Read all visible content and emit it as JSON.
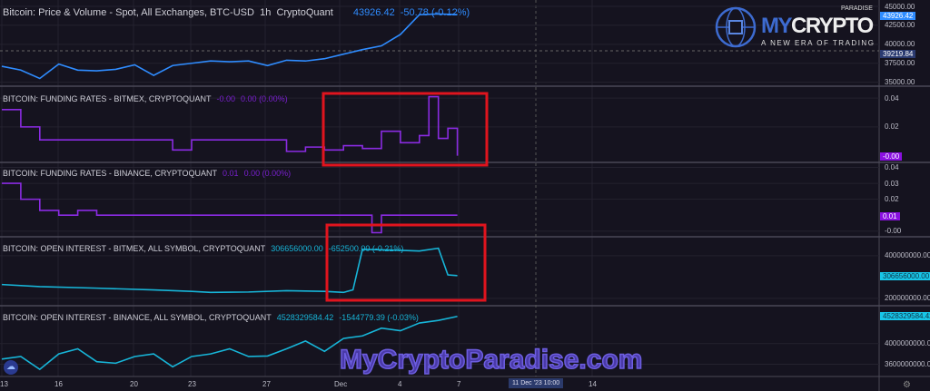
{
  "chart_data": [
    {
      "type": "line",
      "title": "Bitcoin: Price & Volume - Spot, All Exchanges, BTC-USD",
      "interval": "1h",
      "source": "CryptoQuant",
      "legend_value": "43926.42",
      "legend_change": "-50.78 (-0.12%)",
      "color": "#2f8cff",
      "ylim": [
        34600,
        45600
      ],
      "yticks": [
        "45000.00",
        "42500.00",
        "40000.00",
        "37500.00",
        "35000.00"
      ],
      "last_value_tag": "43926.42",
      "crosshair_tag": "39219.84",
      "x": [
        "2023-11-13",
        "2023-11-14",
        "2023-11-15",
        "2023-11-16",
        "2023-11-17",
        "2023-11-18",
        "2023-11-19",
        "2023-11-20",
        "2023-11-21",
        "2023-11-22",
        "2023-11-23",
        "2023-11-24",
        "2023-11-25",
        "2023-11-26",
        "2023-11-27",
        "2023-11-28",
        "2023-11-29",
        "2023-11-30",
        "2023-12-01",
        "2023-12-02",
        "2023-12-03",
        "2023-12-04",
        "2023-12-05",
        "2023-12-06",
        "2023-12-07"
      ],
      "values": [
        37100,
        36600,
        35500,
        37400,
        36600,
        36500,
        36700,
        37300,
        35900,
        37200,
        37500,
        37800,
        37700,
        37800,
        37200,
        37900,
        37800,
        38100,
        38700,
        39300,
        39800,
        41300,
        43900,
        44000,
        43926
      ]
    },
    {
      "type": "line",
      "title": "BITCOIN: FUNDING RATES - BITMEX, CRYPTOQUANT",
      "legend_value": "-0.00",
      "legend_change": "0.00 (0.00%)",
      "color": "#8a2be2",
      "ylim": [
        -0.004,
        0.047
      ],
      "yticks": [
        "0.04",
        "0.02"
      ],
      "last_value_tag": "-0.00",
      "x": [
        "2023-11-13",
        "2023-11-14",
        "2023-11-15",
        "2023-11-16",
        "2023-11-20",
        "2023-11-22",
        "2023-11-23",
        "2023-11-27",
        "2023-11-28",
        "2023-11-29",
        "2023-11-30",
        "2023-12-01",
        "2023-12-02",
        "2023-12-03",
        "2023-12-04",
        "2023-12-05",
        "2023-12-05 12:00",
        "2023-12-06",
        "2023-12-06 12:00",
        "2023-12-07"
      ],
      "values": [
        0.032,
        0.02,
        0.011,
        0.011,
        0.011,
        0.004,
        0.011,
        0.011,
        0.003,
        0.006,
        0.004,
        0.007,
        0.005,
        0.017,
        0.009,
        0.014,
        0.041,
        0.012,
        0.019,
        0.0
      ]
    },
    {
      "type": "line",
      "title": "BITCOIN: FUNDING RATES - BINANCE, CRYPTOQUANT",
      "legend_value": "0.01",
      "legend_change": "0.00 (0.00%)",
      "color": "#8a2be2",
      "ylim": [
        -0.003,
        0.042
      ],
      "yticks": [
        "0.04",
        "0.03",
        "0.02",
        "-0.00"
      ],
      "last_value_tag": "0.01",
      "x": [
        "2023-11-13",
        "2023-11-14",
        "2023-11-15",
        "2023-11-16",
        "2023-11-17",
        "2023-11-18",
        "2023-11-22",
        "2023-12-02",
        "2023-12-02 12:00",
        "2023-12-03",
        "2023-12-07"
      ],
      "values": [
        0.03,
        0.02,
        0.013,
        0.01,
        0.013,
        0.01,
        0.01,
        0.01,
        -0.001,
        0.01,
        0.01
      ]
    },
    {
      "type": "line",
      "title": "BITCOIN: OPEN INTEREST - BITMEX, ALL SYMBOL, CRYPTOQUANT",
      "legend_value": "306656000.00",
      "legend_change": "-652500.00 (-0.21%)",
      "color": "#17b5d8",
      "ylim": [
        170000000,
        480000000
      ],
      "yticks": [
        "400000000.00",
        "200000000.00"
      ],
      "last_value_tag": "306656000.00",
      "x": [
        "2023-11-13",
        "2023-11-15",
        "2023-11-18",
        "2023-11-21",
        "2023-11-23",
        "2023-11-24",
        "2023-11-26",
        "2023-11-28",
        "2023-11-30",
        "2023-12-01",
        "2023-12-01 12:00",
        "2023-12-02",
        "2023-12-04",
        "2023-12-05",
        "2023-12-06",
        "2023-12-06 12:00",
        "2023-12-07"
      ],
      "values": [
        265000000,
        255000000,
        248000000,
        240000000,
        233000000,
        228000000,
        230000000,
        236000000,
        233000000,
        228000000,
        240000000,
        430000000,
        425000000,
        422000000,
        435000000,
        310000000,
        306656000
      ]
    },
    {
      "type": "line",
      "title": "BITCOIN: OPEN INTEREST - BINANCE, ALL SYMBOL, CRYPTOQUANT",
      "legend_value": "4528329584.42",
      "legend_change": "-1544779.39 (-0.03%)",
      "color": "#17b5d8",
      "ylim": [
        3380000000,
        4700000000
      ],
      "yticks": [
        "4000000000.00",
        "3600000000.00"
      ],
      "last_value_tag": "4528329584.42",
      "x": [
        "2023-11-13",
        "2023-11-14",
        "2023-11-15",
        "2023-11-16",
        "2023-11-17",
        "2023-11-18",
        "2023-11-19",
        "2023-11-20",
        "2023-11-21",
        "2023-11-22",
        "2023-11-23",
        "2023-11-24",
        "2023-11-25",
        "2023-11-26",
        "2023-11-27",
        "2023-11-28",
        "2023-11-29",
        "2023-11-30",
        "2023-12-01",
        "2023-12-02",
        "2023-12-03",
        "2023-12-04",
        "2023-12-05",
        "2023-12-06",
        "2023-12-07"
      ],
      "values": [
        3700000000,
        3750000000,
        3500000000,
        3800000000,
        3900000000,
        3650000000,
        3620000000,
        3750000000,
        3800000000,
        3550000000,
        3750000000,
        3800000000,
        3900000000,
        3750000000,
        3760000000,
        3900000000,
        4050000000,
        3850000000,
        4100000000,
        4150000000,
        4300000000,
        4250000000,
        4400000000,
        4450000000,
        4528329584
      ]
    }
  ],
  "x_axis": {
    "ticks": [
      "13",
      "16",
      "20",
      "23",
      "27",
      "Dec",
      "4",
      "7",
      "14"
    ],
    "crosshair_label": "11 Dec '23   10:00"
  },
  "watermark": {
    "logo": "MYCRYPTO",
    "logo_tagline": "A NEW ERA OF TRADING",
    "logo_small": "PARADISE",
    "url": "MyCryptoParadise.com"
  },
  "annotations": {
    "highlight_color": "#e0141e"
  }
}
